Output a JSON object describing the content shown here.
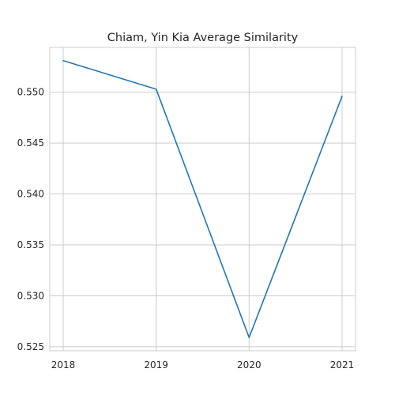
{
  "chart_data": {
    "type": "line",
    "title": "Chiam, Yin Kia Average Similarity",
    "xlabel": "",
    "ylabel": "",
    "categories": [
      "2018",
      "2019",
      "2020",
      "2021"
    ],
    "series": [
      {
        "values": [
          0.5531,
          0.5503,
          0.5259,
          0.5496
        ]
      }
    ],
    "ylim": [
      0.5246,
      0.5544
    ],
    "y_ticks": [
      0.525,
      0.53,
      0.535,
      0.54,
      0.545,
      0.55
    ],
    "y_tick_labels": [
      "0.525",
      "0.530",
      "0.535",
      "0.540",
      "0.545",
      "0.550"
    ],
    "grid": true,
    "legend": "none",
    "colors": {
      "line": "#1f77b4",
      "grid": "#cccccc",
      "spine": "#cccccc",
      "text": "#262626",
      "background": "#ffffff"
    }
  }
}
